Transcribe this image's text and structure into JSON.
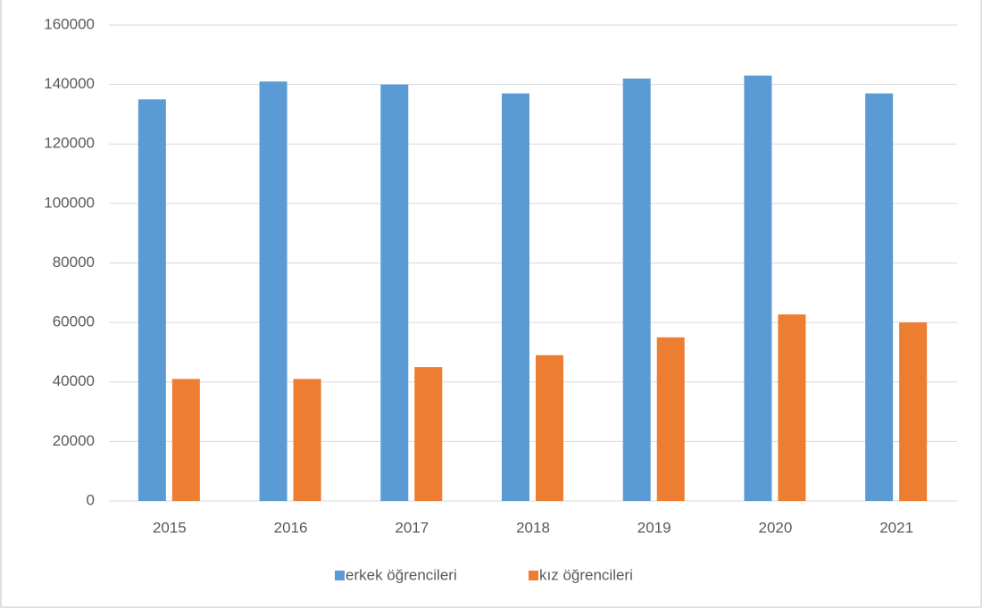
{
  "chart_data": {
    "type": "bar",
    "categories": [
      "2015",
      "2016",
      "2017",
      "2018",
      "2019",
      "2020",
      "2021"
    ],
    "series": [
      {
        "name": "erkek öğrencileri",
        "color": "#5b9bd5",
        "values": [
          135000,
          141000,
          140000,
          137000,
          142000,
          143000,
          137000
        ]
      },
      {
        "name": "kız öğrencileri",
        "color": "#ed7d31",
        "values": [
          41000,
          41000,
          45000,
          49000,
          55000,
          62700,
          60000
        ]
      }
    ],
    "ylim": [
      0,
      160000
    ],
    "yticks": [
      0,
      20000,
      40000,
      60000,
      80000,
      100000,
      120000,
      140000,
      160000
    ],
    "grid": true,
    "legend": "bottom"
  }
}
